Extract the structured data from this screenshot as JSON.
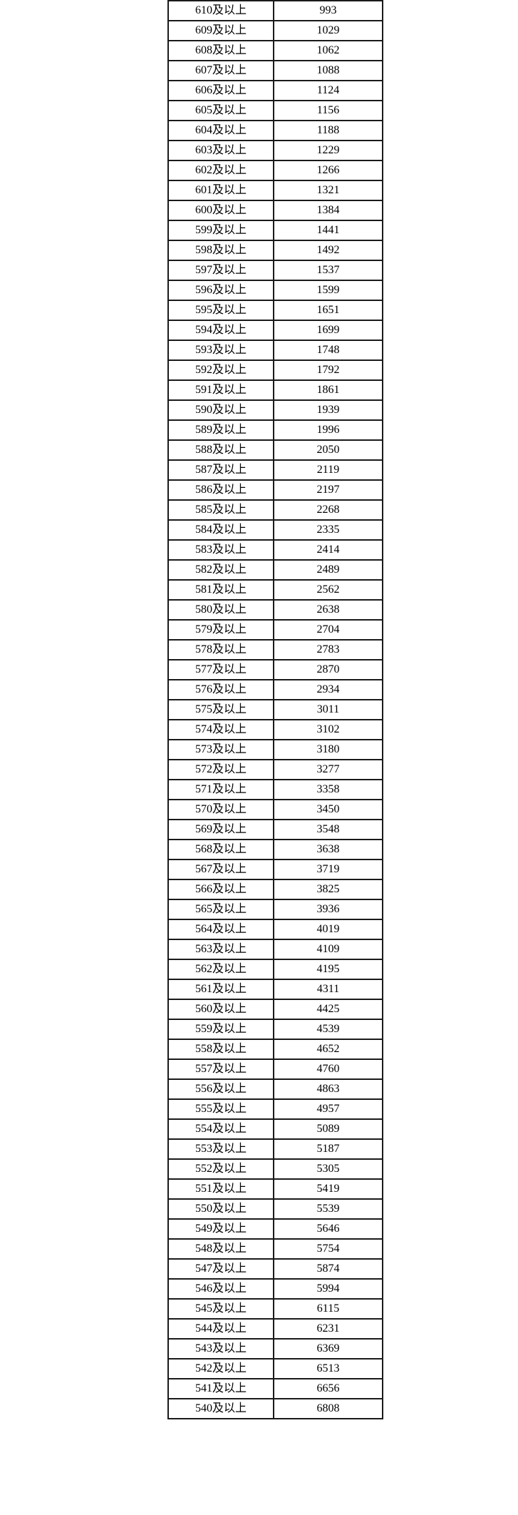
{
  "meta": {
    "description": "Score cumulative distribution table (score-and-above vs cumulative count)",
    "colors": {
      "border": "#1a1a1a",
      "text": "#000000",
      "background": "#ffffff"
    }
  },
  "table": {
    "score_suffix": "及以上",
    "rows": [
      [
        "610及以上",
        993
      ],
      [
        "609及以上",
        1029
      ],
      [
        "608及以上",
        1062
      ],
      [
        "607及以上",
        1088
      ],
      [
        "606及以上",
        1124
      ],
      [
        "605及以上",
        1156
      ],
      [
        "604及以上",
        1188
      ],
      [
        "603及以上",
        1229
      ],
      [
        "602及以上",
        1266
      ],
      [
        "601及以上",
        1321
      ],
      [
        "600及以上",
        1384
      ],
      [
        "599及以上",
        1441
      ],
      [
        "598及以上",
        1492
      ],
      [
        "597及以上",
        1537
      ],
      [
        "596及以上",
        1599
      ],
      [
        "595及以上",
        1651
      ],
      [
        "594及以上",
        1699
      ],
      [
        "593及以上",
        1748
      ],
      [
        "592及以上",
        1792
      ],
      [
        "591及以上",
        1861
      ],
      [
        "590及以上",
        1939
      ],
      [
        "589及以上",
        1996
      ],
      [
        "588及以上",
        2050
      ],
      [
        "587及以上",
        2119
      ],
      [
        "586及以上",
        2197
      ],
      [
        "585及以上",
        2268
      ],
      [
        "584及以上",
        2335
      ],
      [
        "583及以上",
        2414
      ],
      [
        "582及以上",
        2489
      ],
      [
        "581及以上",
        2562
      ],
      [
        "580及以上",
        2638
      ],
      [
        "579及以上",
        2704
      ],
      [
        "578及以上",
        2783
      ],
      [
        "577及以上",
        2870
      ],
      [
        "576及以上",
        2934
      ],
      [
        "575及以上",
        3011
      ],
      [
        "574及以上",
        3102
      ],
      [
        "573及以上",
        3180
      ],
      [
        "572及以上",
        3277
      ],
      [
        "571及以上",
        3358
      ],
      [
        "570及以上",
        3450
      ],
      [
        "569及以上",
        3548
      ],
      [
        "568及以上",
        3638
      ],
      [
        "567及以上",
        3719
      ],
      [
        "566及以上",
        3825
      ],
      [
        "565及以上",
        3936
      ],
      [
        "564及以上",
        4019
      ],
      [
        "563及以上",
        4109
      ],
      [
        "562及以上",
        4195
      ],
      [
        "561及以上",
        4311
      ],
      [
        "560及以上",
        4425
      ],
      [
        "559及以上",
        4539
      ],
      [
        "558及以上",
        4652
      ],
      [
        "557及以上",
        4760
      ],
      [
        "556及以上",
        4863
      ],
      [
        "555及以上",
        4957
      ],
      [
        "554及以上",
        5089
      ],
      [
        "553及以上",
        5187
      ],
      [
        "552及以上",
        5305
      ],
      [
        "551及以上",
        5419
      ],
      [
        "550及以上",
        5539
      ],
      [
        "549及以上",
        5646
      ],
      [
        "548及以上",
        5754
      ],
      [
        "547及以上",
        5874
      ],
      [
        "546及以上",
        5994
      ],
      [
        "545及以上",
        6115
      ],
      [
        "544及以上",
        6231
      ],
      [
        "543及以上",
        6369
      ],
      [
        "542及以上",
        6513
      ],
      [
        "541及以上",
        6656
      ],
      [
        "540及以上",
        6808
      ]
    ]
  }
}
